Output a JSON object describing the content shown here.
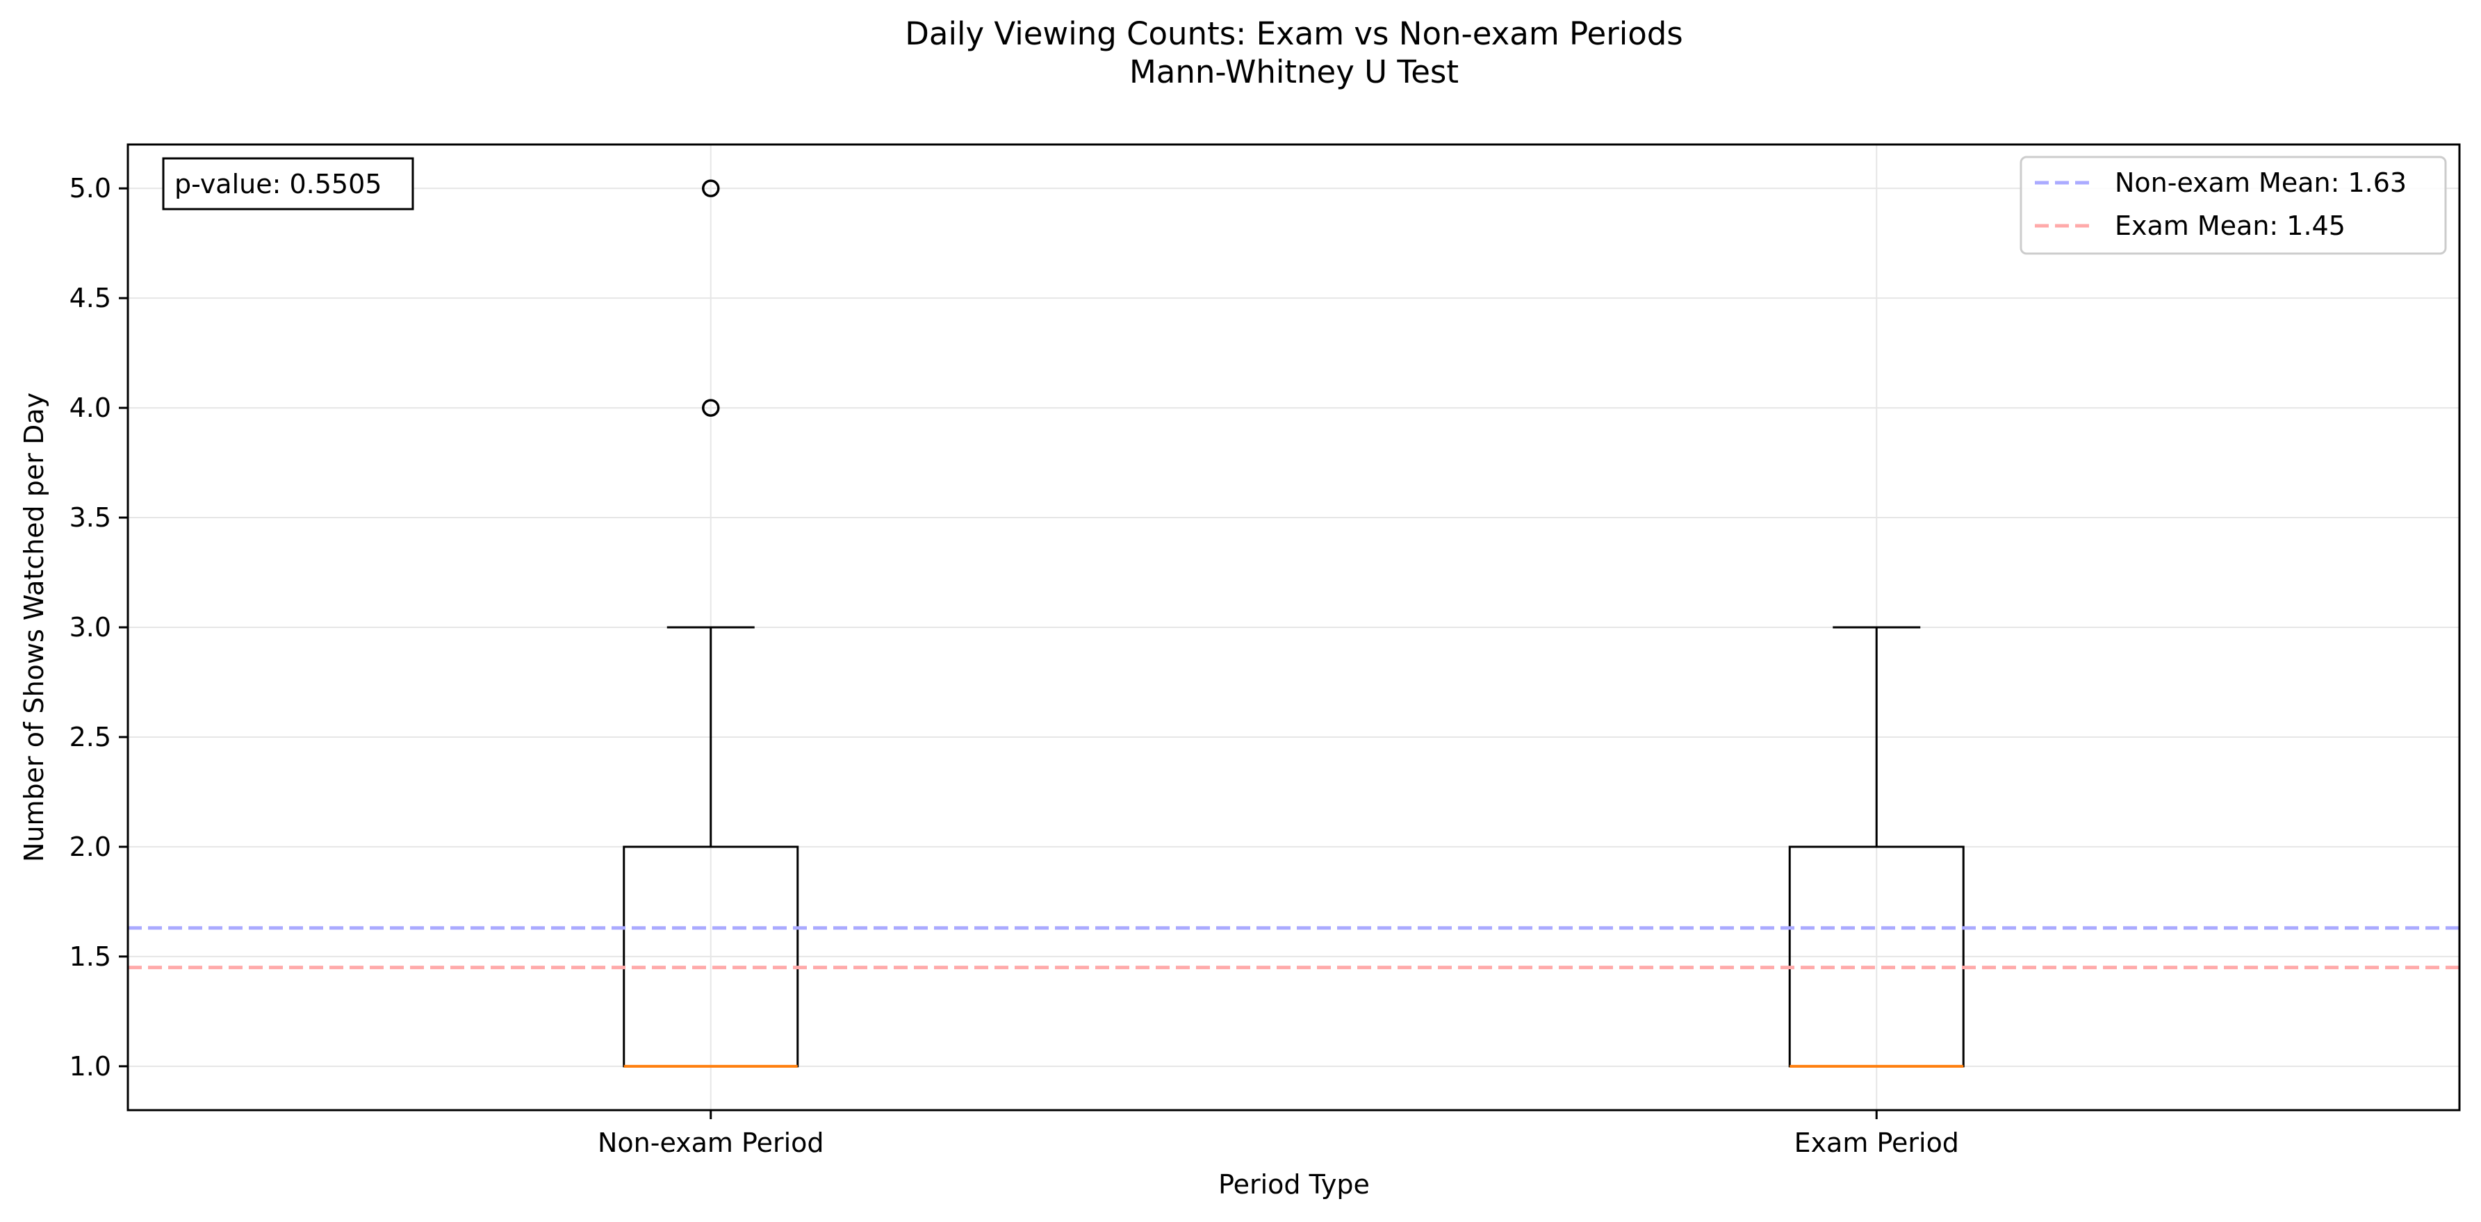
{
  "chart_data": {
    "type": "box",
    "title": "Daily Viewing Counts: Exam vs Non-exam Periods",
    "subtitle": "Mann-Whitney U Test",
    "xlabel": "Period Type",
    "ylabel": "Number of Shows Watched per Day",
    "ylim": [
      0.8,
      5.2
    ],
    "yticks": [
      1.0,
      1.5,
      2.0,
      2.5,
      3.0,
      3.5,
      4.0,
      4.5,
      5.0
    ],
    "ytick_labels": [
      "1.0",
      "1.5",
      "2.0",
      "2.5",
      "3.0",
      "3.5",
      "4.0",
      "4.5",
      "5.0"
    ],
    "grid": true,
    "categories": [
      "Non-exam Period",
      "Exam Period"
    ],
    "boxes": [
      {
        "whisker_low": 1,
        "q1": 1,
        "median": 1,
        "q3": 2,
        "whisker_high": 3,
        "outliers": [
          4,
          5
        ]
      },
      {
        "whisker_low": 1,
        "q1": 1,
        "median": 1,
        "q3": 2,
        "whisker_high": 3,
        "outliers": []
      }
    ],
    "reference_lines": [
      {
        "name": "Non-exam Mean: 1.63",
        "value": 1.63,
        "color": "#aaaaff"
      },
      {
        "name": "Exam Mean: 1.45",
        "value": 1.45,
        "color": "#ffaaaa"
      }
    ],
    "annotation": "p-value: 0.5505",
    "legend_position": "top-right",
    "median_color": "#ff7f0e"
  }
}
